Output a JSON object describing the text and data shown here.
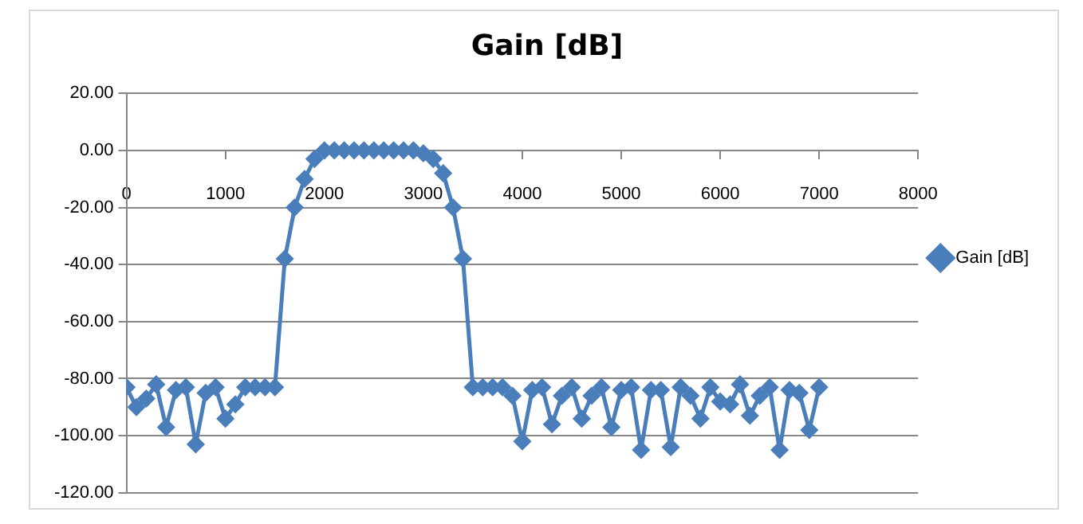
{
  "chart_data": {
    "type": "line",
    "title": "Gain [dB]",
    "x": [
      0,
      100,
      200,
      300,
      400,
      500,
      600,
      700,
      800,
      900,
      1000,
      1100,
      1200,
      1300,
      1400,
      1500,
      1600,
      1700,
      1800,
      1900,
      2000,
      2100,
      2200,
      2300,
      2400,
      2500,
      2600,
      2700,
      2800,
      2900,
      3000,
      3100,
      3200,
      3300,
      3400,
      3500,
      3600,
      3700,
      3800,
      3900,
      4000,
      4100,
      4200,
      4300,
      4400,
      4500,
      4600,
      4700,
      4800,
      4900,
      5000,
      5100,
      5200,
      5300,
      5400,
      5500,
      5600,
      5700,
      5800,
      5900,
      6000,
      6100,
      6200,
      6300,
      6400,
      6500,
      6600,
      6700,
      6800,
      6900,
      7000
    ],
    "series": [
      {
        "name": "Gain [dB]",
        "color": "#4a7ebb",
        "values": [
          -83,
          -90,
          -87,
          -82,
          -97,
          -84,
          -83,
          -103,
          -85,
          -83,
          -94,
          -89,
          -83,
          -83,
          -83,
          -83,
          -38,
          -20,
          -10,
          -3,
          0,
          0,
          0,
          0,
          0,
          0,
          0,
          0,
          0,
          0,
          -1,
          -3,
          -8,
          -20,
          -38,
          -83,
          -83,
          -83,
          -83,
          -86,
          -102,
          -84,
          -83,
          -96,
          -86,
          -83,
          -94,
          -86,
          -83,
          -97,
          -84,
          -83,
          -105,
          -84,
          -84,
          -104,
          -83,
          -86,
          -94,
          -83,
          -88,
          -89,
          -82,
          -93,
          -86,
          -83,
          -105,
          -84,
          -85,
          -98,
          -83
        ]
      }
    ],
    "xlim": [
      0,
      8000
    ],
    "xticks": [
      0,
      1000,
      2000,
      3000,
      4000,
      5000,
      6000,
      7000,
      8000
    ],
    "ylim": [
      -120,
      20
    ],
    "yticks": [
      {
        "value": -120,
        "label": "-120.00"
      },
      {
        "value": -100,
        "label": "-100.00"
      },
      {
        "value": -80,
        "label": "-80.00"
      },
      {
        "value": -60,
        "label": "-60.00"
      },
      {
        "value": -40,
        "label": "-40.00"
      },
      {
        "value": -20,
        "label": "-20.00"
      },
      {
        "value": 0,
        "label": "0.00"
      },
      {
        "value": 20,
        "label": "20.00"
      }
    ],
    "grid": "y",
    "legend": "right",
    "marker": "diamond",
    "line_style": "solid"
  }
}
